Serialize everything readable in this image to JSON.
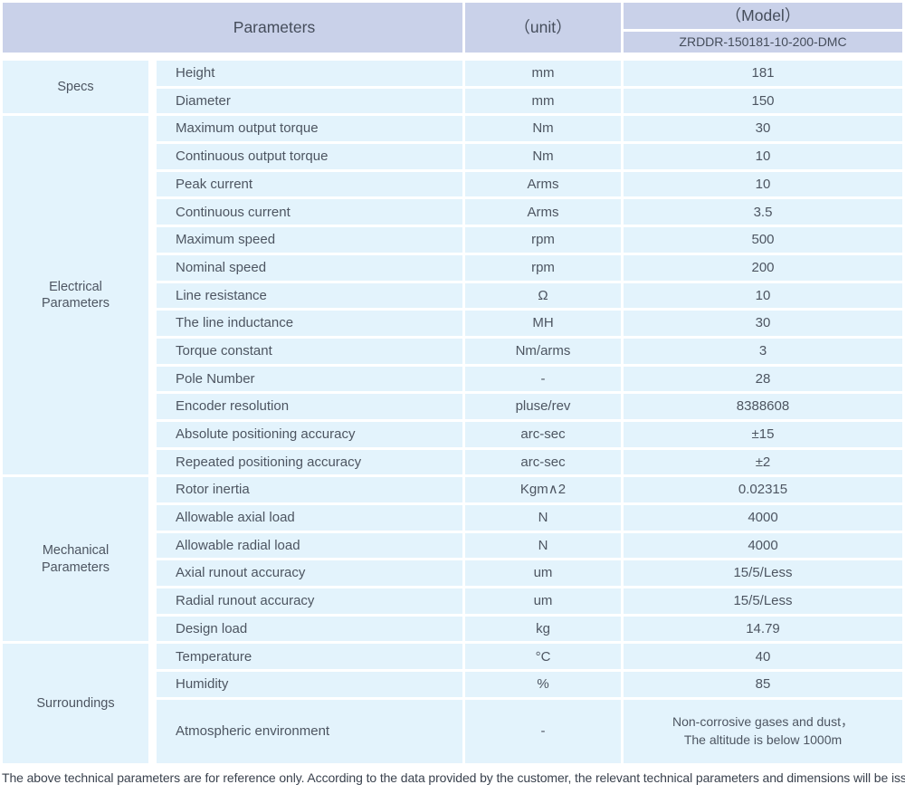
{
  "colors": {
    "header_bg": "#c9d1e9",
    "row_bg": "#e3f3fc",
    "text": "#4d5561"
  },
  "header": {
    "parameters_label": "Parameters",
    "unit_label": "（unit）",
    "model_label": "（Model）",
    "model_value": "ZRDDR-150181-10-200-DMC"
  },
  "sections": [
    {
      "name": "Specs",
      "rows": [
        {
          "param": "Height",
          "unit": "mm",
          "value": "181"
        },
        {
          "param": "Diameter",
          "unit": "mm",
          "value": "150"
        }
      ]
    },
    {
      "name": "Electrical Parameters",
      "rows": [
        {
          "param": "Maximum output torque",
          "unit": "Nm",
          "value": "30"
        },
        {
          "param": "Continuous output torque",
          "unit": "Nm",
          "value": "10"
        },
        {
          "param": "Peak current",
          "unit": "Arms",
          "value": "10"
        },
        {
          "param": "Continuous current",
          "unit": "Arms",
          "value": "3.5"
        },
        {
          "param": "Maximum speed",
          "unit": "rpm",
          "value": "500"
        },
        {
          "param": "Nominal speed",
          "unit": "rpm",
          "value": "200"
        },
        {
          "param": "Line resistance",
          "unit": "Ω",
          "value": "10"
        },
        {
          "param": "The line inductance",
          "unit": "MH",
          "value": "30"
        },
        {
          "param": "Torque constant",
          "unit": "Nm/arms",
          "value": "3"
        },
        {
          "param": "Pole Number",
          "unit": "-",
          "value": "28"
        },
        {
          "param": "Encoder resolution",
          "unit": "pluse/rev",
          "value": "8388608"
        },
        {
          "param": "Absolute positioning accuracy",
          "unit": "arc-sec",
          "value": "±15"
        },
        {
          "param": "Repeated positioning accuracy",
          "unit": "arc-sec",
          "value": "±2"
        }
      ]
    },
    {
      "name": "Mechanical Parameters",
      "rows": [
        {
          "param": "Rotor inertia",
          "unit": "Kgm∧2",
          "value": "0.02315"
        },
        {
          "param": "Allowable axial load",
          "unit": "N",
          "value": "4000"
        },
        {
          "param": "Allowable radial load",
          "unit": "N",
          "value": "4000"
        },
        {
          "param": "Axial runout accuracy",
          "unit": "um",
          "value": "15/5/Less"
        },
        {
          "param": "Radial runout accuracy",
          "unit": "um",
          "value": "15/5/Less"
        },
        {
          "param": "Design load",
          "unit": "kg",
          "value": "14.79"
        }
      ]
    },
    {
      "name": "Surroundings",
      "rows": [
        {
          "param": "Temperature",
          "unit": "°C",
          "value": "40"
        },
        {
          "param": "Humidity",
          "unit": "%",
          "value": "85"
        },
        {
          "param": "Atmospheric environment",
          "unit": "-",
          "value": "Non-corrosive gases and dust，\nThe altitude is below 1000m"
        }
      ]
    }
  ],
  "footer": {
    "note": "The above technical parameters are for reference only. According to the data provided by the customer, the relevant technical parameters and dimensions will be issued."
  }
}
